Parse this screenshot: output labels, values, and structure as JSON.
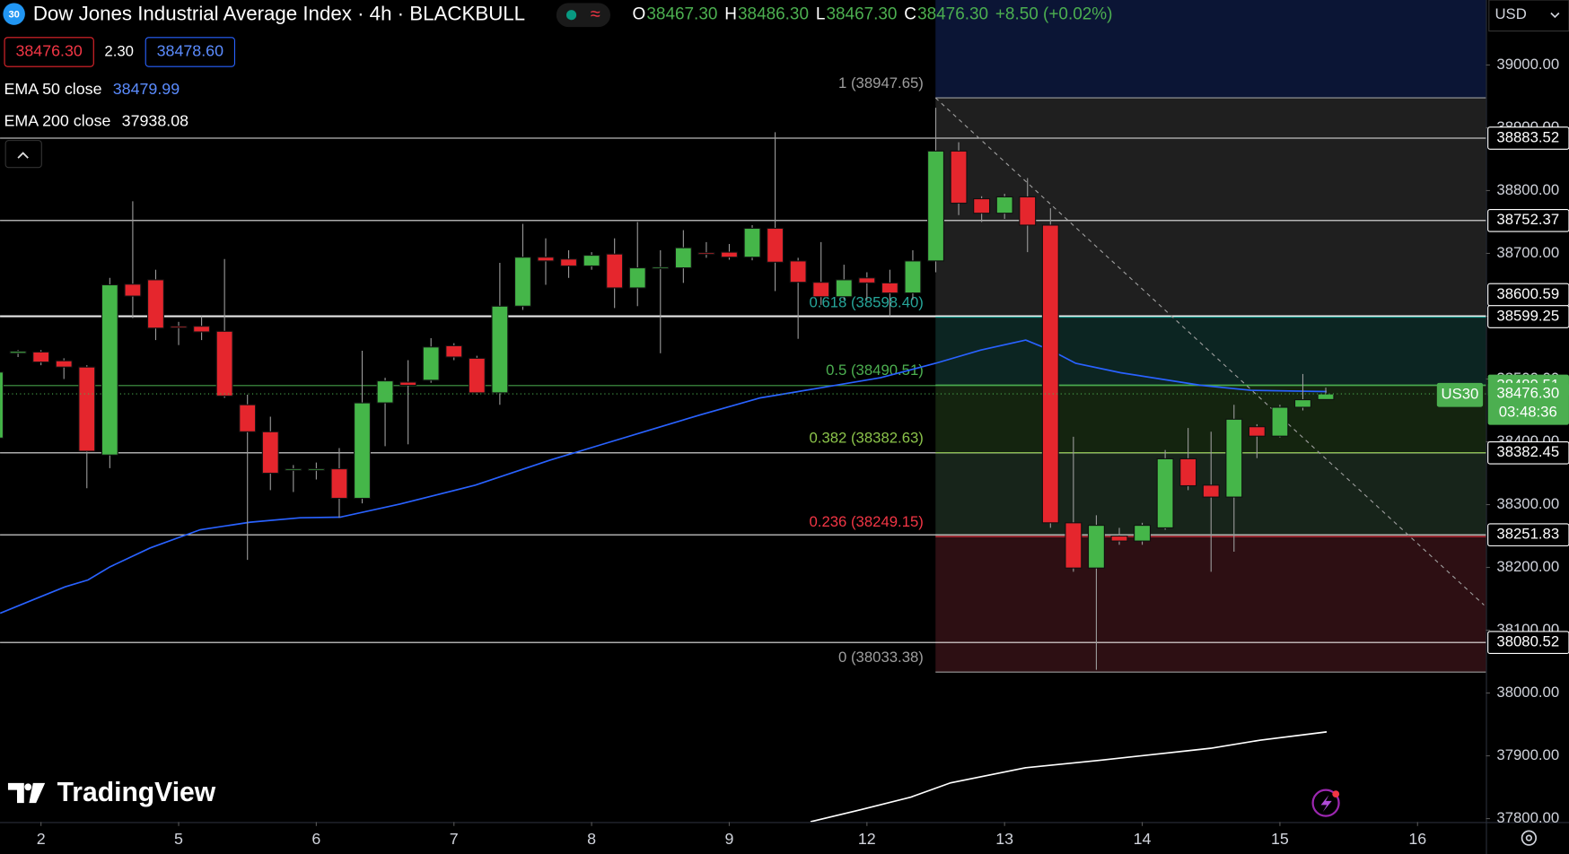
{
  "header": {
    "badge": "30",
    "title": "Dow Jones Industrial Average Index · 4h · BLACKBULL",
    "ohlc": [
      {
        "label": "O",
        "value": "38467.30"
      },
      {
        "label": "H",
        "value": "38486.30"
      },
      {
        "label": "L",
        "value": "38467.30"
      },
      {
        "label": "C",
        "value": "38476.30"
      }
    ],
    "change": "+8.50 (+0.02%)",
    "bid": "38476.30",
    "spread": "2.30",
    "ask": "38478.60",
    "currency": "USD",
    "symbol": "US30",
    "countdown": "03:48:36",
    "logo": "TradingView"
  },
  "chart_data": {
    "type": "candlestick",
    "xlim": [
      -0.785,
      63.98
    ],
    "ylim": [
      37794.6,
      39103.5
    ],
    "grid": false,
    "xticks": [
      {
        "value": 1,
        "label": "2"
      },
      {
        "value": 7,
        "label": "5"
      },
      {
        "value": 13,
        "label": "6"
      },
      {
        "value": 19,
        "label": "7"
      },
      {
        "value": 25,
        "label": "8"
      },
      {
        "value": 31,
        "label": "9"
      },
      {
        "value": 37,
        "label": "12"
      },
      {
        "value": 43,
        "label": "13"
      },
      {
        "value": 49,
        "label": "14"
      },
      {
        "value": 55,
        "label": "15"
      },
      {
        "value": 61,
        "label": "16"
      }
    ],
    "yticks": [
      {
        "value": 39000,
        "label": "39000.00"
      },
      {
        "value": 38900,
        "label": "38900.00"
      },
      {
        "value": 38800,
        "label": "38800.00"
      },
      {
        "value": 38700,
        "label": "38700.00"
      },
      {
        "value": 38600,
        "label": "38600.00"
      },
      {
        "value": 38500,
        "label": "38500.00"
      },
      {
        "value": 38400,
        "label": "38400.00"
      },
      {
        "value": 38300,
        "label": "38300.00"
      },
      {
        "value": 38200,
        "label": "38200.00"
      },
      {
        "value": 38100,
        "label": "38100.00"
      },
      {
        "value": 38000,
        "label": "38000.00"
      },
      {
        "value": 37900,
        "label": "37900.00"
      },
      {
        "value": 37800,
        "label": "37800.00"
      }
    ],
    "up_color": "#45b649",
    "down_color": "#e5262d",
    "x": [
      -1,
      0,
      1,
      2,
      3,
      4,
      5,
      6,
      7,
      8,
      9,
      10,
      11,
      12,
      13,
      14,
      15,
      16,
      17,
      18,
      19,
      20,
      21,
      22,
      23,
      24,
      25,
      26,
      27,
      28,
      29,
      30,
      31,
      32,
      33,
      34,
      35,
      36,
      37,
      38,
      39,
      40,
      41,
      42,
      43,
      44,
      45,
      46,
      47,
      48,
      49,
      50,
      51,
      52,
      53,
      54,
      55,
      56,
      57
    ],
    "open": [
      38406,
      38541,
      38543,
      38529,
      38519,
      38379,
      38651,
      38658,
      38584,
      38584,
      38576,
      38459,
      38416,
      38356,
      38355,
      38357,
      38310,
      38462,
      38495,
      38498,
      38553,
      38533,
      38478,
      38616,
      38694,
      38691,
      38680,
      38699,
      38645,
      38677,
      38677,
      38701,
      38702,
      38694,
      38740,
      38688,
      38654,
      38631,
      38661,
      38653,
      38637,
      38688,
      38863,
      38787,
      38764,
      38790,
      38745,
      38271,
      38199,
      38250,
      38242,
      38263,
      38373,
      38331,
      38312,
      38424,
      38409,
      38455,
      38467.3
    ],
    "high": [
      38515,
      38546,
      38546,
      38533,
      38522,
      38661,
      38783,
      38674,
      38591,
      38600,
      38691,
      38475,
      38440,
      38363,
      38367,
      38390,
      38545,
      38502,
      38530,
      38565,
      38557,
      38537,
      38685,
      38747,
      38724,
      38705,
      38702,
      38724,
      38750,
      38705,
      38737,
      38718,
      38715,
      38745,
      38893,
      38693,
      38718,
      38682,
      38670,
      38674,
      38705,
      38932,
      38877,
      38791,
      38795,
      38820,
      38772,
      38408,
      38283,
      38263,
      38271,
      38387,
      38422,
      38416,
      38459,
      38428,
      38459,
      38508,
      38486.3
    ],
    "low": [
      38400,
      38535,
      38522,
      38500,
      38326,
      38358,
      38597,
      38562,
      38554,
      38562,
      38470,
      38212,
      38323,
      38320,
      38340,
      38279,
      38302,
      38393,
      38396,
      38494,
      38530,
      38475,
      38459,
      38610,
      38650,
      38661,
      38674,
      38613,
      38616,
      38541,
      38653,
      38693,
      38690,
      38689,
      38640,
      38564,
      38618,
      38626,
      38626,
      38600,
      38626,
      38670,
      38761,
      38750,
      38755,
      38702,
      38263,
      38193,
      38037,
      38236,
      38236,
      38260,
      38323,
      38193,
      38225,
      38374,
      38407,
      38450,
      38467.3
    ],
    "close": [
      38511,
      38544,
      38527,
      38519,
      38385,
      38650,
      38632,
      38581,
      38583,
      38575,
      38473,
      38416,
      38350,
      38357,
      38357,
      38310,
      38462,
      38497,
      38490,
      38551,
      38535,
      38478,
      38616,
      38694,
      38688,
      38680,
      38697,
      38645,
      38677,
      38678,
      38709,
      38700,
      38694,
      38740,
      38686,
      38654,
      38631,
      38658,
      38653,
      38637,
      38688,
      38863,
      38780,
      38764,
      38790,
      38745,
      38271,
      38199,
      38267,
      38242,
      38267,
      38373,
      38330,
      38312,
      38436,
      38409,
      38455,
      38467,
      38476.3
    ],
    "series": [
      {
        "name": "EMA 50 close",
        "color": "#2962ff",
        "last_value": 38479.99,
        "x": [
          -0.78,
          0.96,
          2.05,
          3.05,
          4.01,
          5.76,
          7.94,
          10.12,
          12.3,
          14.04,
          16.66,
          19.93,
          23.2,
          25.38,
          27.56,
          29.74,
          32.36,
          34.98,
          37.59,
          39.99,
          41.95,
          43.92,
          45.0,
          46.1,
          48.06,
          51.55,
          53.73,
          57.04
        ],
        "values": [
          38127,
          38153,
          38169,
          38180,
          38201,
          38231,
          38260,
          38272,
          38279,
          38280,
          38301,
          38331,
          38371,
          38395,
          38419,
          38443,
          38470,
          38486,
          38502,
          38525,
          38546,
          38562,
          38546,
          38525,
          38510,
          38490,
          38482,
          38479.99
        ]
      },
      {
        "name": "EMA 200 close",
        "color": "#ffffff",
        "last_value": 37938.08,
        "x": [
          34.54,
          36.72,
          38.9,
          40.65,
          43.92,
          47.19,
          51.98,
          54.16,
          57.04
        ],
        "values": [
          37795,
          37814,
          37834,
          37857,
          37881,
          37893,
          37912,
          37925,
          37938.08
        ]
      }
    ],
    "horizontal_lines": [
      {
        "value": 38883.52,
        "color": "#ffffff"
      },
      {
        "value": 38752.37,
        "color": "#ffffff"
      },
      {
        "value": 38600.59,
        "color": "#ffffff"
      },
      {
        "value": 38599.25,
        "color": "#ffffff"
      },
      {
        "value": 38489.51,
        "color": "#4caf50"
      },
      {
        "value": 38382.45,
        "color": "#ffffff"
      },
      {
        "value": 38251.83,
        "color": "#ffffff"
      },
      {
        "value": 38080.52,
        "color": "#ffffff"
      }
    ],
    "current_price": {
      "value": 38476.3,
      "label": "38476.30"
    },
    "fib": {
      "x": [
        39.99,
        63.98
      ],
      "top_fill": "#0b1535",
      "levels": [
        {
          "value": 38947.65,
          "label": "1 (38947.65)",
          "color": "#9e9e9e",
          "fill": "#1f1f1f"
        },
        {
          "value": 38598.4,
          "label": "0.618 (38598.40)",
          "color": "#26a69a",
          "fill": "#0c2522"
        },
        {
          "value": 38490.51,
          "label": "0.5 (38490.51)",
          "color": "#4caf50",
          "fill": "#14240f"
        },
        {
          "value": 38382.63,
          "label": "0.382 (38382.63)",
          "color": "#8bc34a",
          "fill": "#17241a"
        },
        {
          "value": 38249.15,
          "label": "0.236 (38249.15)",
          "color": "#f23645",
          "fill": "#2d0f13"
        },
        {
          "value": 38033.38,
          "label": "0 (38033.38)",
          "color": "#9e9e9e"
        }
      ]
    },
    "trend_line": {
      "x": [
        39.99,
        63.9
      ],
      "y": [
        38947.65,
        38140
      ]
    }
  }
}
